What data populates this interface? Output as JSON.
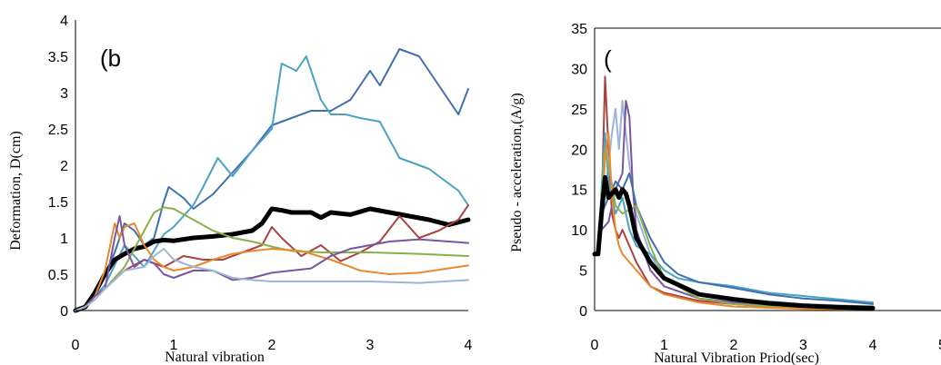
{
  "chart_data": [
    {
      "type": "line",
      "panel_label": "(b",
      "xlabel": "Natural vibration",
      "ylabel": "Deformation, D(cm)",
      "xlim": [
        0,
        4
      ],
      "ylim": [
        0,
        4
      ],
      "x_ticks": [
        "0",
        "1",
        "2",
        "3",
        "4"
      ],
      "y_ticks": [
        "0",
        "0.5",
        "1",
        "1.5",
        "2",
        "2.5",
        "3",
        "3.5",
        "4"
      ],
      "grid": false,
      "series": [
        {
          "color": "#3f6fae",
          "width": 2,
          "x": [
            0,
            0.1,
            0.2,
            0.3,
            0.4,
            0.5,
            0.6,
            0.7,
            0.8,
            0.9,
            0.95,
            1.0,
            1.1,
            1.2,
            1.4,
            1.6,
            1.8,
            2.0,
            2.2,
            2.4,
            2.6,
            2.8,
            3.0,
            3.1,
            3.3,
            3.5,
            3.7,
            3.9,
            4.0
          ],
          "y": [
            0,
            0.05,
            0.2,
            0.5,
            0.8,
            1.2,
            1.1,
            0.9,
            1.0,
            1.5,
            1.7,
            1.65,
            1.55,
            1.4,
            1.6,
            1.9,
            2.2,
            2.55,
            2.65,
            2.75,
            2.75,
            2.9,
            3.3,
            3.1,
            3.6,
            3.5,
            3.1,
            2.7,
            3.05
          ]
        },
        {
          "color": "#4aa3c3",
          "width": 2,
          "x": [
            0,
            0.1,
            0.2,
            0.3,
            0.5,
            0.7,
            0.9,
            1.0,
            1.2,
            1.3,
            1.45,
            1.6,
            1.8,
            2.0,
            2.1,
            2.25,
            2.35,
            2.5,
            2.6,
            2.75,
            2.9,
            3.1,
            3.3,
            3.6,
            3.9,
            4.0
          ],
          "y": [
            0,
            0.05,
            0.2,
            0.35,
            0.9,
            0.6,
            1.05,
            1.15,
            1.45,
            1.7,
            2.1,
            1.85,
            2.2,
            2.5,
            3.4,
            3.3,
            3.5,
            2.9,
            2.7,
            2.7,
            2.65,
            2.6,
            2.1,
            1.95,
            1.65,
            1.45
          ]
        },
        {
          "color": "#000000",
          "width": 5,
          "x": [
            0,
            0.1,
            0.2,
            0.3,
            0.4,
            0.5,
            0.6,
            0.7,
            0.8,
            0.9,
            1.0,
            1.2,
            1.4,
            1.6,
            1.8,
            1.9,
            2.0,
            2.1,
            2.2,
            2.4,
            2.5,
            2.6,
            2.8,
            3.0,
            3.2,
            3.4,
            3.6,
            3.8,
            4.0
          ],
          "y": [
            0,
            0.05,
            0.25,
            0.5,
            0.7,
            0.78,
            0.85,
            0.88,
            0.95,
            0.97,
            0.96,
            1.0,
            1.02,
            1.05,
            1.1,
            1.2,
            1.4,
            1.38,
            1.35,
            1.35,
            1.28,
            1.35,
            1.32,
            1.4,
            1.35,
            1.3,
            1.25,
            1.18,
            1.25
          ]
        },
        {
          "color": "#a94340",
          "width": 2,
          "x": [
            0,
            0.1,
            0.2,
            0.3,
            0.5,
            0.7,
            0.9,
            1.1,
            1.3,
            1.5,
            1.7,
            1.9,
            2.0,
            2.1,
            2.3,
            2.5,
            2.7,
            2.9,
            3.1,
            3.3,
            3.5,
            3.7,
            3.9,
            4.0
          ],
          "y": [
            0,
            0.05,
            0.2,
            0.3,
            0.55,
            0.7,
            0.6,
            0.75,
            0.7,
            0.7,
            0.8,
            0.9,
            1.15,
            1.0,
            0.75,
            0.9,
            0.68,
            0.8,
            0.95,
            1.3,
            1.0,
            1.1,
            1.25,
            1.45
          ]
        },
        {
          "color": "#8dae4c",
          "width": 2,
          "x": [
            0,
            0.1,
            0.2,
            0.3,
            0.5,
            0.7,
            0.8,
            0.9,
            1.0,
            1.2,
            1.4,
            1.6,
            1.8,
            2.0,
            2.2,
            2.5,
            3.0,
            3.5,
            4.0
          ],
          "y": [
            0,
            0.05,
            0.2,
            0.3,
            0.6,
            1.1,
            1.35,
            1.42,
            1.4,
            1.25,
            1.1,
            1.0,
            0.95,
            0.88,
            0.82,
            0.8,
            0.8,
            0.78,
            0.75
          ]
        },
        {
          "color": "#e8892f",
          "width": 2,
          "x": [
            0,
            0.1,
            0.2,
            0.3,
            0.4,
            0.45,
            0.5,
            0.6,
            0.7,
            0.8,
            0.9,
            1.0,
            1.2,
            1.4,
            1.6,
            1.8,
            2.0,
            2.3,
            2.6,
            2.9,
            3.2,
            3.5,
            4.0
          ],
          "y": [
            0,
            0.05,
            0.2,
            0.55,
            1.2,
            1.0,
            1.15,
            1.2,
            0.9,
            0.7,
            0.6,
            0.55,
            0.6,
            0.7,
            0.78,
            0.82,
            0.85,
            0.82,
            0.7,
            0.55,
            0.5,
            0.52,
            0.62
          ]
        },
        {
          "color": "#7a55a0",
          "width": 2,
          "x": [
            0,
            0.1,
            0.2,
            0.3,
            0.4,
            0.45,
            0.5,
            0.6,
            0.7,
            0.8,
            0.9,
            1.0,
            1.2,
            1.4,
            1.6,
            1.8,
            2.0,
            2.2,
            2.4,
            2.6,
            2.8,
            3.0,
            3.2,
            3.5,
            4.0
          ],
          "y": [
            0,
            0.05,
            0.2,
            0.3,
            1.0,
            1.3,
            0.9,
            0.6,
            0.7,
            0.65,
            0.5,
            0.45,
            0.55,
            0.55,
            0.42,
            0.45,
            0.52,
            0.55,
            0.58,
            0.75,
            0.85,
            0.9,
            0.95,
            0.98,
            0.93
          ]
        },
        {
          "color": "#9bb5d9",
          "width": 2,
          "x": [
            0,
            0.1,
            0.2,
            0.3,
            0.5,
            0.7,
            0.8,
            0.9,
            1.0,
            1.2,
            1.4,
            1.6,
            1.8,
            2.0,
            2.5,
            3.0,
            3.5,
            4.0
          ],
          "y": [
            0,
            0.05,
            0.15,
            0.3,
            0.55,
            0.6,
            0.75,
            0.85,
            0.7,
            0.6,
            0.55,
            0.45,
            0.42,
            0.4,
            0.4,
            0.4,
            0.38,
            0.42
          ]
        }
      ]
    },
    {
      "type": "line",
      "panel_label": "(",
      "xlabel": "Natural Vibration Priod(sec)",
      "ylabel": "Pseudo - acceleration,(A/g)",
      "xlim": [
        0,
        5
      ],
      "ylim": [
        0,
        35
      ],
      "x_ticks": [
        "0",
        "1",
        "2",
        "3",
        "4",
        "5"
      ],
      "y_ticks": [
        "0",
        "5",
        "10",
        "15",
        "20",
        "25",
        "30",
        "35"
      ],
      "grid": false,
      "series": [
        {
          "color": "#a94340",
          "width": 2,
          "x": [
            0,
            0.05,
            0.1,
            0.15,
            0.2,
            0.25,
            0.3,
            0.35,
            0.4,
            0.5,
            0.6,
            0.8,
            1.0,
            1.5,
            2.0,
            2.5,
            3.0,
            4.0
          ],
          "y": [
            7,
            7.5,
            12,
            29,
            20,
            12,
            10,
            9,
            10,
            8,
            6,
            3,
            2.2,
            1.2,
            0.8,
            0.5,
            0.3,
            0.1
          ]
        },
        {
          "color": "#9bb5d9",
          "width": 2,
          "x": [
            0,
            0.05,
            0.1,
            0.15,
            0.2,
            0.25,
            0.3,
            0.35,
            0.4,
            0.45,
            0.5,
            0.6,
            0.8,
            1.0,
            1.5,
            2.0,
            3.0,
            4.0
          ],
          "y": [
            7,
            7.5,
            10,
            15,
            18,
            22,
            25,
            20,
            26,
            22,
            18,
            12,
            7,
            4,
            2,
            1.5,
            0.8,
            0.5
          ]
        },
        {
          "color": "#7a55a0",
          "width": 2,
          "x": [
            0,
            0.05,
            0.1,
            0.2,
            0.3,
            0.4,
            0.45,
            0.5,
            0.55,
            0.6,
            0.8,
            1.0,
            1.5,
            2.0,
            3.0,
            4.0
          ],
          "y": [
            7,
            7.5,
            10,
            11,
            15,
            17,
            26,
            24,
            15,
            10,
            5,
            3,
            1.5,
            1,
            0.5,
            0.3
          ]
        },
        {
          "color": "#4aa3c3",
          "width": 2,
          "x": [
            0,
            0.05,
            0.1,
            0.15,
            0.2,
            0.3,
            0.4,
            0.5,
            0.6,
            0.8,
            1.0,
            1.2,
            1.5,
            2.0,
            2.5,
            3.0,
            3.5,
            4.0
          ],
          "y": [
            7,
            7.5,
            15,
            22,
            16,
            12,
            14,
            10,
            8,
            7,
            5,
            4,
            3.5,
            3,
            2.2,
            1.8,
            1.4,
            1.0
          ]
        },
        {
          "color": "#3f6fae",
          "width": 2,
          "x": [
            0,
            0.05,
            0.1,
            0.2,
            0.3,
            0.4,
            0.5,
            0.6,
            0.7,
            0.8,
            1.0,
            1.2,
            1.5,
            2.0,
            2.5,
            3.0,
            3.5,
            4.0
          ],
          "y": [
            7,
            7.5,
            12,
            14,
            16,
            15,
            17,
            13,
            11,
            9,
            6,
            4.5,
            3.5,
            2.8,
            2,
            1.5,
            1.2,
            0.8
          ]
        },
        {
          "color": "#8dae4c",
          "width": 2,
          "x": [
            0,
            0.05,
            0.1,
            0.15,
            0.2,
            0.3,
            0.4,
            0.6,
            0.8,
            1.0,
            1.5,
            2.0,
            3.0,
            4.0
          ],
          "y": [
            7,
            7.5,
            14,
            20,
            18,
            13,
            12,
            13,
            8,
            4,
            1.5,
            0.8,
            0.3,
            0.1
          ]
        },
        {
          "color": "#e8892f",
          "width": 2,
          "x": [
            0,
            0.05,
            0.1,
            0.15,
            0.2,
            0.25,
            0.3,
            0.35,
            0.4,
            0.5,
            0.6,
            0.8,
            1.0,
            1.5,
            2.0,
            3.0,
            4.0
          ],
          "y": [
            7,
            7.5,
            11,
            19,
            22,
            14,
            10,
            8,
            7,
            6,
            5,
            3,
            2,
            1,
            0.5,
            0.2,
            0.05
          ]
        },
        {
          "color": "#000000",
          "width": 5,
          "x": [
            0,
            0.05,
            0.1,
            0.15,
            0.2,
            0.25,
            0.3,
            0.35,
            0.4,
            0.45,
            0.5,
            0.6,
            0.8,
            1.0,
            1.5,
            2.0,
            2.5,
            3.0,
            3.5,
            4.0
          ],
          "y": [
            7,
            7,
            12,
            16.5,
            14,
            14.5,
            15,
            14,
            15,
            14.5,
            13,
            9,
            6,
            4,
            2,
            1.4,
            0.9,
            0.6,
            0.4,
            0.3
          ]
        }
      ]
    }
  ]
}
